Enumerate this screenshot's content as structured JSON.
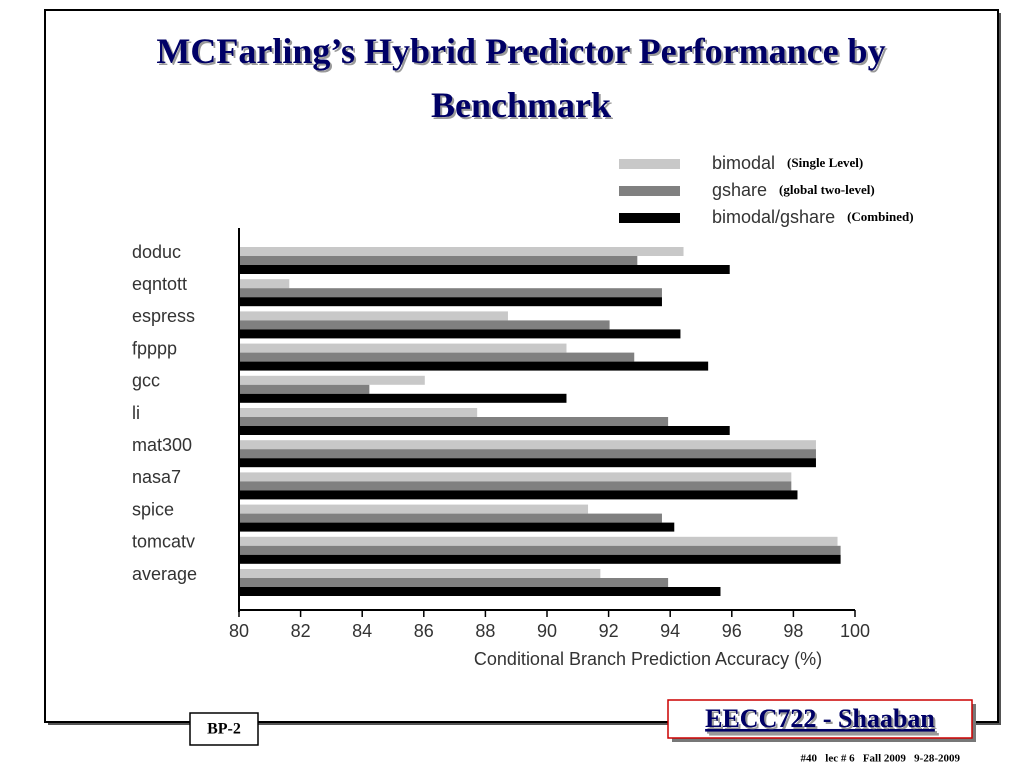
{
  "chart_data": {
    "type": "hbar",
    "title": "MCFarling’s Hybrid Predictor Performance by Benchmark",
    "x_label": "Conditional Branch Prediction Accuracy (%)",
    "categories": [
      "doduc",
      "eqntott",
      "espress",
      "fpppp",
      "gcc",
      "li",
      "mat300",
      "nasa7",
      "spice",
      "tomcatv",
      "average"
    ],
    "series": [
      {
        "name": "bimodal",
        "note": "(Single Level)",
        "color": "#c8c8c8",
        "values": [
          94.4,
          81.6,
          88.7,
          90.6,
          86.0,
          87.7,
          98.7,
          97.9,
          91.3,
          99.4,
          91.7
        ]
      },
      {
        "name": "gshare",
        "note": "(global two-level)",
        "color": "#808080",
        "values": [
          92.9,
          93.7,
          92.0,
          92.8,
          84.2,
          93.9,
          98.7,
          97.9,
          93.7,
          99.5,
          93.9
        ]
      },
      {
        "name": "bimodal/gshare",
        "note": "(Combined)",
        "color": "#000000",
        "values": [
          95.9,
          93.7,
          94.3,
          95.2,
          90.6,
          95.9,
          98.7,
          98.1,
          94.1,
          99.5,
          95.6
        ]
      }
    ],
    "xlim": [
      80,
      100
    ],
    "xticks": [
      80,
      82,
      84,
      86,
      88,
      90,
      92,
      94,
      96,
      98,
      100
    ],
    "legend": "top-right"
  },
  "footer": {
    "slide_id": "BP-2",
    "course": "EECC722 - Shaaban",
    "info": "#40   lec # 6   Fall 2009   9-28-2009"
  }
}
